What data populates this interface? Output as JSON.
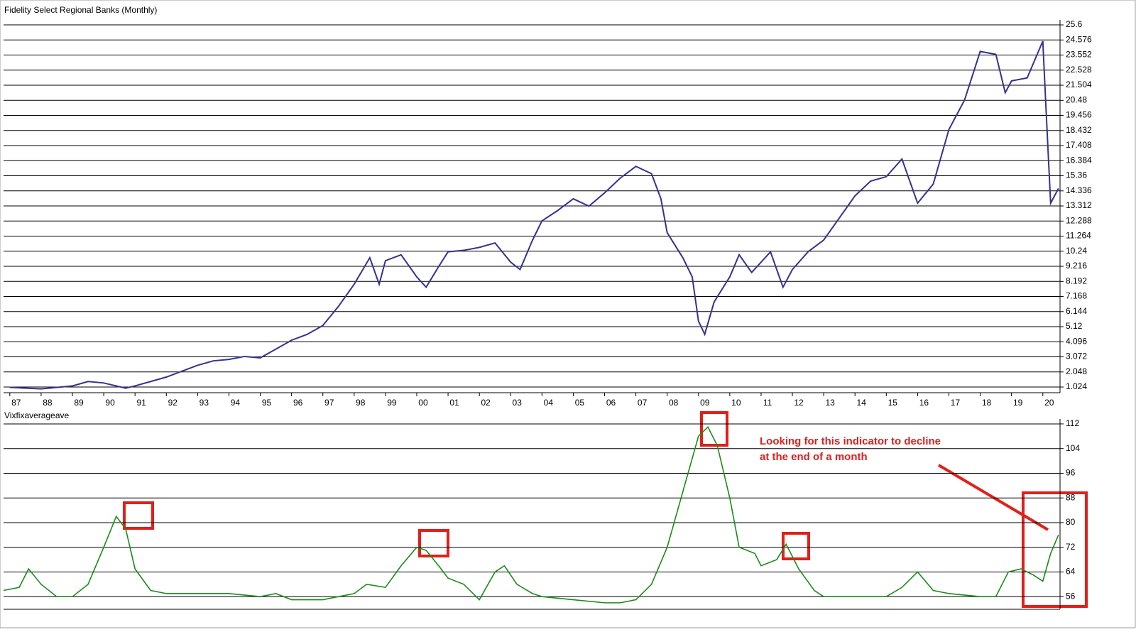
{
  "chart_data": [
    {
      "type": "line",
      "title": "Fidelity Select Regional Banks (Monthly)",
      "color": "#33338f",
      "x": [
        1987,
        1988,
        1989,
        1989.5,
        1990,
        1990.7,
        1991,
        1991.5,
        1992,
        1992.5,
        1993,
        1993.5,
        1994,
        1994.5,
        1995,
        1995.5,
        1996,
        1996.5,
        1997,
        1997.5,
        1998,
        1998.5,
        1998.8,
        1999,
        1999.5,
        2000,
        2000.3,
        2000.7,
        2001,
        2001.5,
        2002,
        2002.5,
        2003,
        2003.3,
        2003.7,
        2004,
        2004.5,
        2005,
        2005.5,
        2006,
        2006.5,
        2007,
        2007.5,
        2007.8,
        2008,
        2008.5,
        2008.8,
        2009,
        2009.2,
        2009.5,
        2010,
        2010.3,
        2010.7,
        2011,
        2011.3,
        2011.7,
        2012,
        2012.5,
        2013,
        2013.5,
        2014,
        2014.5,
        2015,
        2015.5,
        2016,
        2016.5,
        2017,
        2017.5,
        2018,
        2018.5,
        2018.8,
        2019,
        2019.5,
        2020,
        2020.1,
        2020.25,
        2020.5
      ],
      "values": [
        1.0,
        0.9,
        1.1,
        1.4,
        1.3,
        0.95,
        1.1,
        1.4,
        1.7,
        2.1,
        2.5,
        2.8,
        2.9,
        3.1,
        3.0,
        3.6,
        4.2,
        4.6,
        5.2,
        6.5,
        8.0,
        9.8,
        8.0,
        9.6,
        10.0,
        8.5,
        7.8,
        9.2,
        10.2,
        10.3,
        10.5,
        10.8,
        9.5,
        9.0,
        11.0,
        12.3,
        13.0,
        13.8,
        13.3,
        14.2,
        15.2,
        16.0,
        15.5,
        13.8,
        11.5,
        9.8,
        8.5,
        5.5,
        4.6,
        6.8,
        8.5,
        10.0,
        8.8,
        9.5,
        10.2,
        7.8,
        9.0,
        10.2,
        11.0,
        12.5,
        14.0,
        15.0,
        15.3,
        16.5,
        13.5,
        14.8,
        18.5,
        20.5,
        23.8,
        23.6,
        21.0,
        21.8,
        22.0,
        24.5,
        20.0,
        13.5,
        14.5
      ],
      "xlim": [
        1986.8,
        2020.55
      ],
      "ylim": [
        0.64,
        25.94
      ],
      "xticks": [
        {
          "value": 1987,
          "label": "87"
        },
        {
          "value": 1988,
          "label": "88"
        },
        {
          "value": 1989,
          "label": "89"
        },
        {
          "value": 1990,
          "label": "90"
        },
        {
          "value": 1991,
          "label": "91"
        },
        {
          "value": 1992,
          "label": "92"
        },
        {
          "value": 1993,
          "label": "93"
        },
        {
          "value": 1994,
          "label": "94"
        },
        {
          "value": 1995,
          "label": "95"
        },
        {
          "value": 1996,
          "label": "96"
        },
        {
          "value": 1997,
          "label": "97"
        },
        {
          "value": 1998,
          "label": "98"
        },
        {
          "value": 1999,
          "label": "99"
        },
        {
          "value": 2000,
          "label": "00"
        },
        {
          "value": 2001,
          "label": "01"
        },
        {
          "value": 2002,
          "label": "02"
        },
        {
          "value": 2003,
          "label": "03"
        },
        {
          "value": 2004,
          "label": "04"
        },
        {
          "value": 2005,
          "label": "05"
        },
        {
          "value": 2006,
          "label": "06"
        },
        {
          "value": 2007,
          "label": "07"
        },
        {
          "value": 2008,
          "label": "08"
        },
        {
          "value": 2009,
          "label": "09"
        },
        {
          "value": 2010,
          "label": "10"
        },
        {
          "value": 2011,
          "label": "11"
        },
        {
          "value": 2012,
          "label": "12"
        },
        {
          "value": 2013,
          "label": "13"
        },
        {
          "value": 2014,
          "label": "14"
        },
        {
          "value": 2015,
          "label": "15"
        },
        {
          "value": 2016,
          "label": "16"
        },
        {
          "value": 2017,
          "label": "17"
        },
        {
          "value": 2018,
          "label": "18"
        },
        {
          "value": 2019,
          "label": "19"
        },
        {
          "value": 2020,
          "label": "20"
        }
      ],
      "yticks": [
        1.024,
        2.048,
        3.072,
        4.096,
        5.12,
        6.144,
        7.168,
        8.192,
        9.216,
        10.24,
        11.264,
        12.288,
        13.312,
        14.336,
        15.36,
        16.384,
        17.408,
        18.432,
        19.456,
        20.48,
        21.504,
        22.528,
        23.552,
        24.576,
        25.6
      ],
      "grid": true
    },
    {
      "type": "line",
      "title": "Vixfixaverageave",
      "color": "#1a8c1a",
      "annotation": "Looking for this indicator to decline at the end of a month",
      "x": [
        1986.8,
        1987.3,
        1987.6,
        1988,
        1988.5,
        1989,
        1989.5,
        1990,
        1990.4,
        1990.7,
        1991,
        1991.5,
        1992,
        1993,
        1994,
        1995,
        1995.5,
        1996,
        1997,
        1998,
        1998.4,
        1999,
        1999.5,
        2000,
        2000.3,
        2000.7,
        2001,
        2001.5,
        2002,
        2002.5,
        2002.8,
        2003.2,
        2003.7,
        2004,
        2005,
        2006,
        2006.5,
        2007,
        2007.5,
        2008,
        2008.5,
        2009,
        2009.3,
        2009.6,
        2010,
        2010.3,
        2010.8,
        2011,
        2011.5,
        2011.8,
        2012.2,
        2012.7,
        2013,
        2014,
        2015,
        2015.5,
        2016,
        2016.5,
        2017,
        2018,
        2018.5,
        2018.9,
        2019.3,
        2019.7,
        2020,
        2020.25,
        2020.5
      ],
      "values": [
        58,
        59,
        65,
        60,
        56,
        56,
        60,
        72,
        82,
        78,
        65,
        58,
        57,
        57,
        57,
        56,
        57,
        55,
        55,
        57,
        60,
        59,
        66,
        72,
        71,
        66,
        62,
        60,
        55,
        64,
        66,
        60,
        57,
        56,
        55,
        54,
        54,
        55,
        60,
        72,
        90,
        108,
        111,
        105,
        88,
        72,
        70,
        66,
        68,
        73,
        65,
        58,
        56,
        56,
        56,
        59,
        64,
        58,
        57,
        56,
        56,
        64,
        65,
        63,
        61,
        70,
        76
      ],
      "xlim": [
        1986.8,
        2020.55
      ],
      "ylim": [
        51.9,
        113.6
      ],
      "yticks": [
        56,
        64,
        72,
        80,
        88,
        96,
        104,
        112
      ],
      "grid": true
    }
  ]
}
